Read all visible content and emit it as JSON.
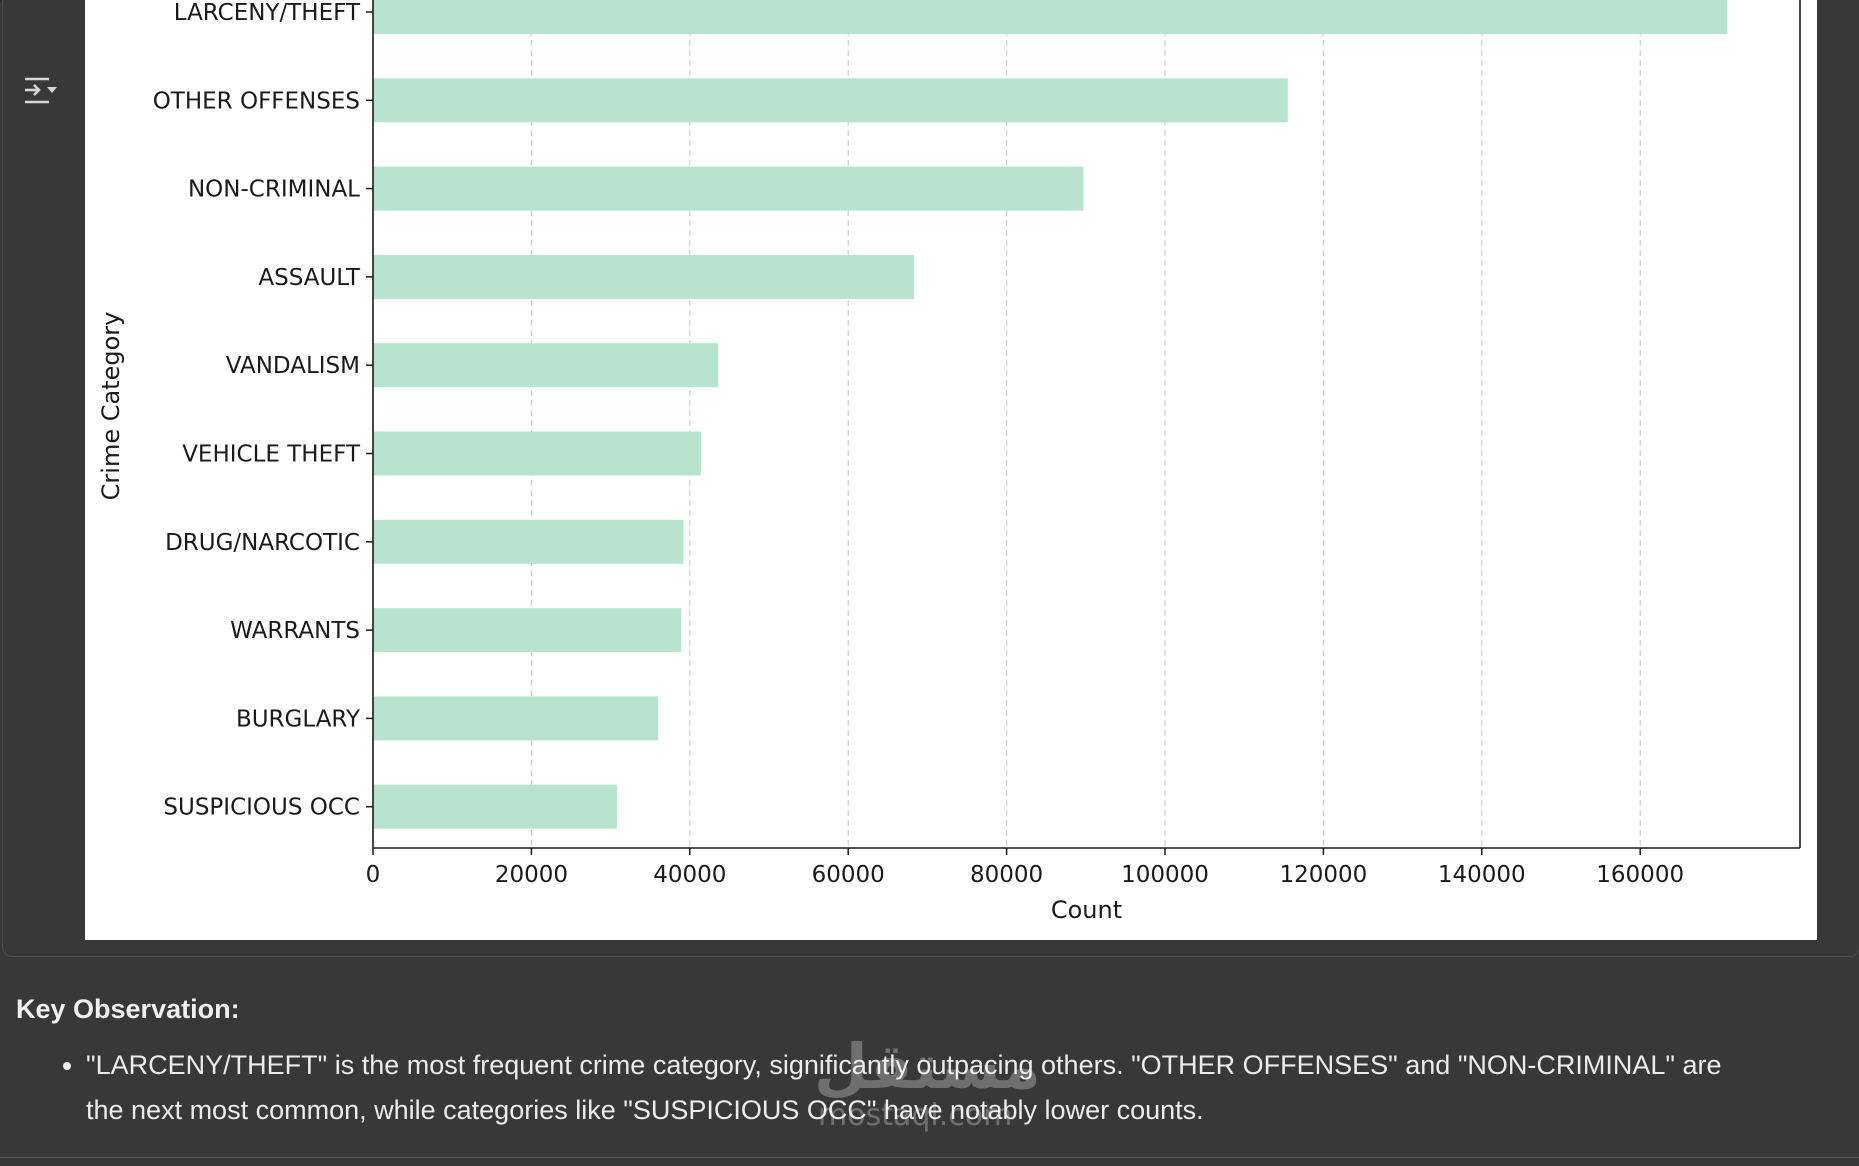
{
  "chart_data": {
    "type": "bar",
    "orientation": "horizontal",
    "categories": [
      "LARCENY/THEFT",
      "OTHER OFFENSES",
      "NON-CRIMINAL",
      "ASSAULT",
      "VANDALISM",
      "VEHICLE THEFT",
      "DRUG/NARCOTIC",
      "WARRANTS",
      "BURGLARY",
      "SUSPICIOUS OCC"
    ],
    "values": [
      171000,
      115500,
      89700,
      68300,
      43600,
      41400,
      39200,
      38900,
      36000,
      30800
    ],
    "xlabel": "Count",
    "ylabel": "Crime Category",
    "xticks": [
      0,
      20000,
      40000,
      60000,
      80000,
      100000,
      120000,
      140000,
      160000
    ],
    "xlim": [
      0,
      180000
    ],
    "grid": "x-dashed",
    "bar_color": "#b7e3cf"
  },
  "output_toggle": {
    "icon": "output-collapse-icon"
  },
  "observation": {
    "heading": "Key Observation:",
    "bullets": [
      "\"LARCENY/THEFT\" is the most frequent crime category, significantly outpacing others. \"OTHER OFFENSES\" and \"NON-CRIMINAL\" are the next most common, while categories like \"SUSPICIOUS OCC\" have notably lower counts."
    ]
  },
  "watermark": {
    "arabic": "مستقل",
    "latin": "mostaql.com"
  },
  "colors": {
    "page_background": "#383838",
    "chart_background": "#ffffff",
    "text": "#ececec"
  }
}
